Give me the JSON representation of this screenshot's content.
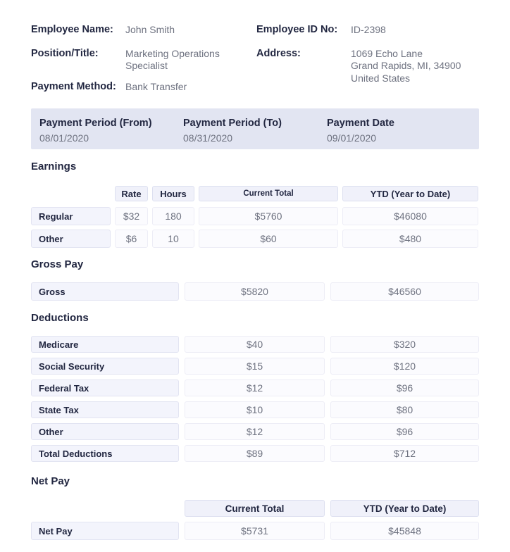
{
  "colors": {
    "heading_text": "#222741",
    "value_text": "#6e7280",
    "band_bg": "#e2e5f2",
    "header_bg": "#f0f1fa",
    "header_border": "#dde0f0",
    "chip_bg": "#f3f4fc",
    "chip_border": "#e2e4f2",
    "field_bg": "#fbfbfe",
    "field_border": "#ededf6"
  },
  "employee": {
    "name_label": "Employee Name:",
    "name": "John Smith",
    "position_label": "Position/Title:",
    "position": "Marketing Operations Specialist",
    "payment_method_label": "Payment Method:",
    "payment_method": "Bank Transfer",
    "id_label": "Employee ID No:",
    "id": "ID-2398",
    "address_label": "Address:",
    "address_lines": [
      "1069 Echo Lane",
      "Grand Rapids, MI, 34900",
      "United States"
    ]
  },
  "payment_summary": {
    "columns": [
      {
        "label": "Payment Period (From)",
        "value": "08/01/2020"
      },
      {
        "label": "Payment Period (To)",
        "value": "08/31/2020"
      },
      {
        "label": "Payment Date",
        "value": "09/01/2020"
      }
    ]
  },
  "earnings": {
    "title": "Earnings",
    "headers": [
      "Rate",
      "Hours",
      "Current Total",
      "YTD (Year to Date)"
    ],
    "rows": [
      {
        "label": "Regular",
        "rate": "$32",
        "hours": "180",
        "current": "$5760",
        "ytd": "$46080"
      },
      {
        "label": "Other",
        "rate": "$6",
        "hours": "10",
        "current": "$60",
        "ytd": "$480"
      }
    ]
  },
  "gross_pay": {
    "title": "Gross Pay",
    "row": {
      "label": "Gross",
      "current": "$5820",
      "ytd": "$46560"
    }
  },
  "deductions": {
    "title": "Deductions",
    "rows": [
      {
        "label": "Medicare",
        "current": "$40",
        "ytd": "$320"
      },
      {
        "label": "Social Security",
        "current": "$15",
        "ytd": "$120"
      },
      {
        "label": "Federal Tax",
        "current": "$12",
        "ytd": "$96"
      },
      {
        "label": "State Tax",
        "current": "$10",
        "ytd": "$80"
      },
      {
        "label": "Other",
        "current": "$12",
        "ytd": "$96"
      },
      {
        "label": "Total Deductions",
        "current": "$89",
        "ytd": "$712"
      }
    ]
  },
  "net_pay": {
    "title": "Net Pay",
    "headers": [
      "Current Total",
      "YTD (Year to Date)"
    ],
    "row": {
      "label": "Net Pay",
      "current": "$5731",
      "ytd": "$45848"
    }
  }
}
